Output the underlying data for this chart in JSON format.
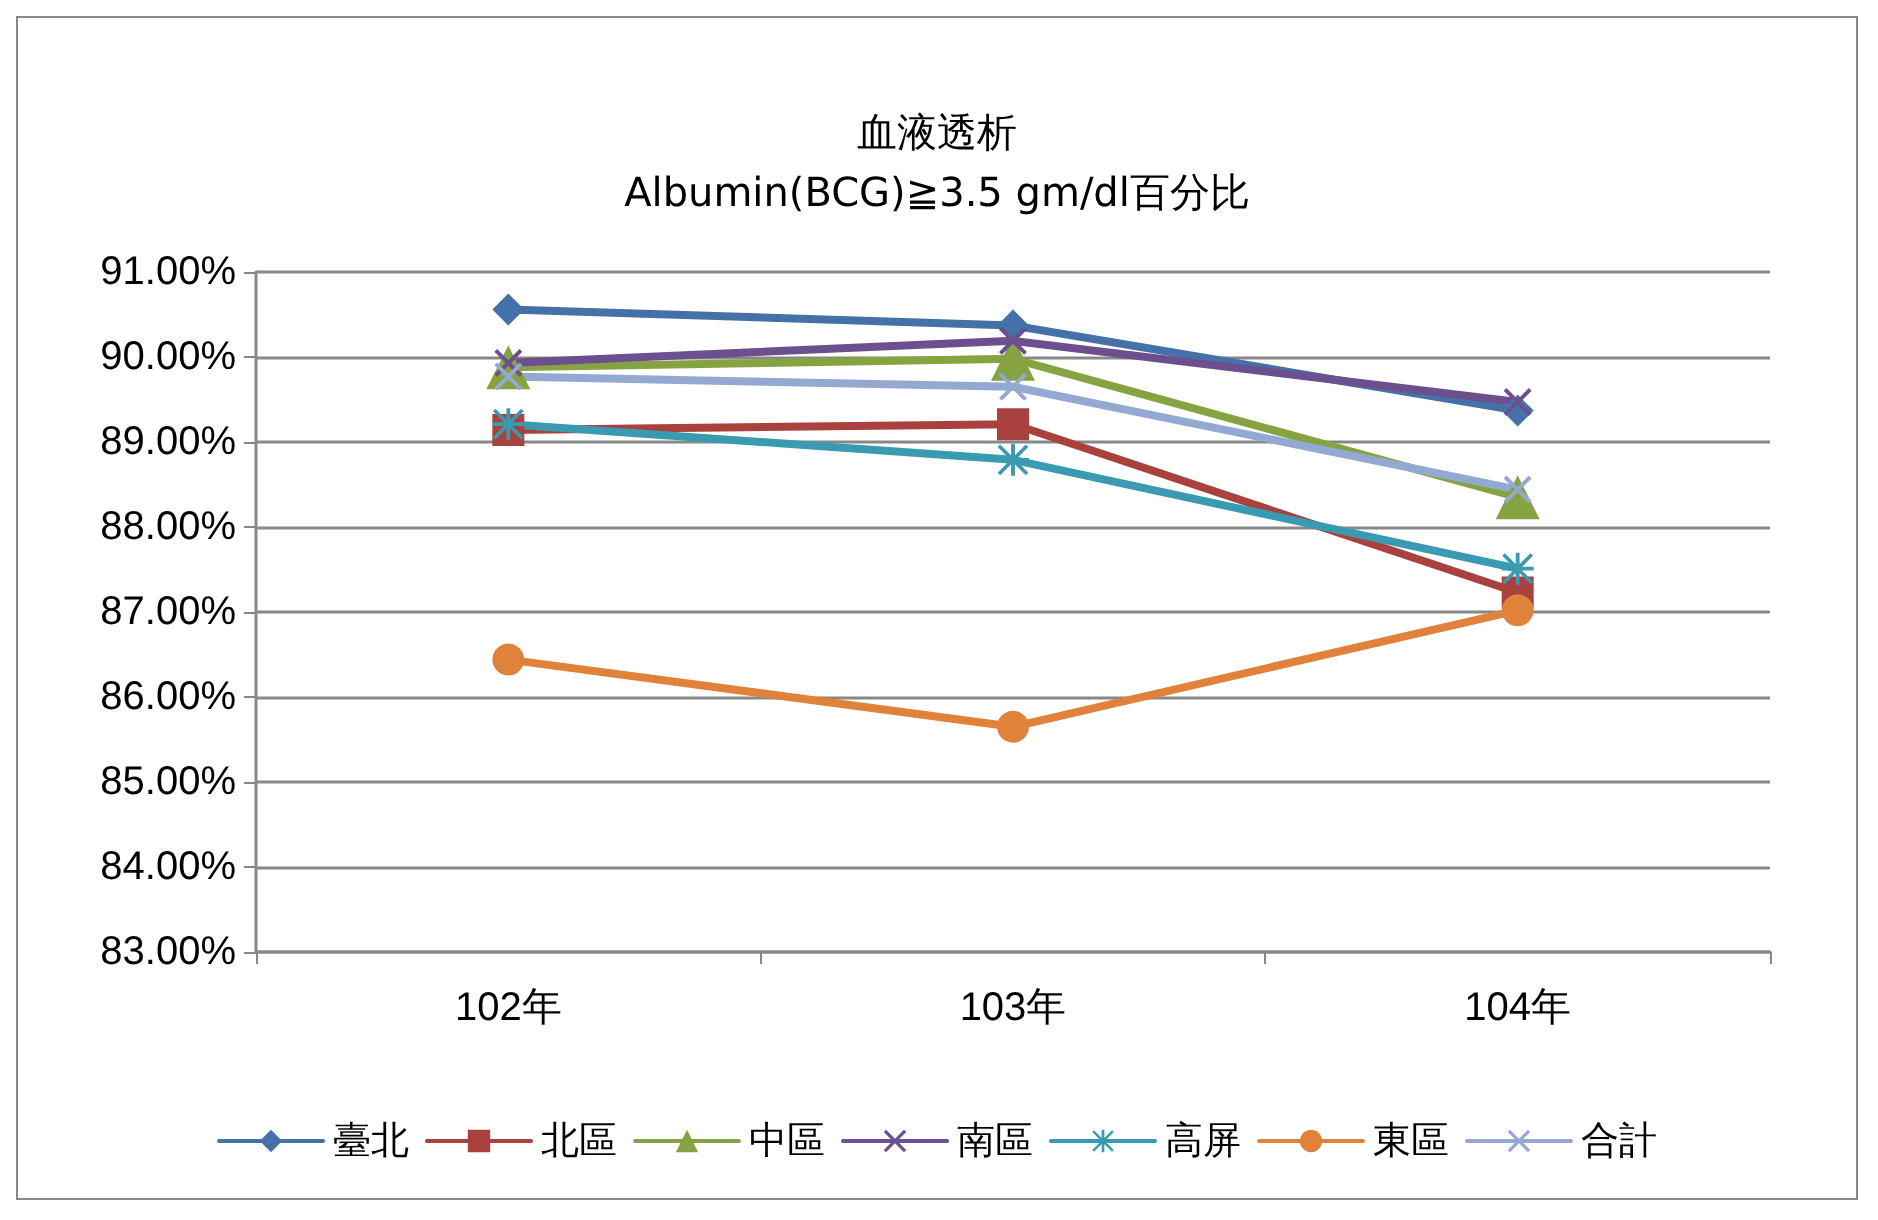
{
  "chart_data": {
    "type": "line",
    "title": "血液透析",
    "subtitle": "Albumin(BCG)≧3.5 gm/dl百分比",
    "categories": [
      "102年",
      "103年",
      "104年"
    ],
    "series": [
      {
        "name": "臺北",
        "color": "#4472a8",
        "marker": "diamond",
        "values": [
          90.56,
          90.37,
          89.37
        ]
      },
      {
        "name": "北區",
        "color": "#a9413e",
        "marker": "square",
        "values": [
          89.14,
          89.21,
          87.23
        ]
      },
      {
        "name": "中區",
        "color": "#86a342",
        "marker": "triangle",
        "values": [
          89.88,
          89.98,
          88.35
        ]
      },
      {
        "name": "南區",
        "color": "#6b4f8e",
        "marker": "cross",
        "values": [
          89.93,
          90.19,
          89.47
        ]
      },
      {
        "name": "高屏",
        "color": "#3a9ab2",
        "marker": "star",
        "values": [
          89.21,
          88.79,
          87.51
        ]
      },
      {
        "name": "東區",
        "color": "#e0823a",
        "marker": "circle",
        "values": [
          86.44,
          85.65,
          87.02
        ]
      },
      {
        "name": "合計",
        "color": "#93a9d2",
        "marker": "cross",
        "values": [
          89.77,
          89.65,
          88.44
        ]
      }
    ],
    "ylim": [
      83,
      91
    ],
    "yticks": [
      {
        "value": 83,
        "label": "83.00%"
      },
      {
        "value": 84,
        "label": "84.00%"
      },
      {
        "value": 85,
        "label": "85.00%"
      },
      {
        "value": 86,
        "label": "86.00%"
      },
      {
        "value": 87,
        "label": "87.00%"
      },
      {
        "value": 88,
        "label": "88.00%"
      },
      {
        "value": 89,
        "label": "89.00%"
      },
      {
        "value": 90,
        "label": "90.00%"
      },
      {
        "value": 91,
        "label": "91.00%"
      }
    ],
    "grid": "y",
    "legend": "bottom",
    "line_style": "solid"
  }
}
